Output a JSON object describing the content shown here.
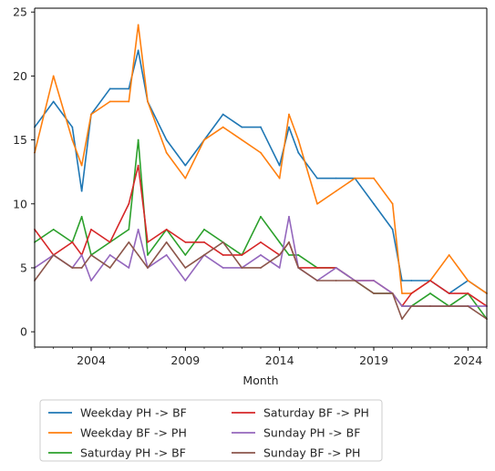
{
  "chart_data": {
    "type": "line",
    "title": "",
    "xlabel": "Month",
    "ylabel": "",
    "xlim": [
      2001.0,
      2025.0
    ],
    "ylim": [
      -1.2,
      25.3
    ],
    "x_ticks": [
      {
        "value": 2004,
        "label": "2004"
      },
      {
        "value": 2009,
        "label": "2009"
      },
      {
        "value": 2014,
        "label": "2014"
      },
      {
        "value": 2019,
        "label": "2019"
      },
      {
        "value": 2024,
        "label": "2024"
      }
    ],
    "y_ticks": [
      {
        "value": 0,
        "label": "0"
      },
      {
        "value": 5,
        "label": "5"
      },
      {
        "value": 10,
        "label": "10"
      },
      {
        "value": 15,
        "label": "15"
      },
      {
        "value": 20,
        "label": "20"
      },
      {
        "value": 25,
        "label": "25"
      }
    ],
    "grid": false,
    "legend": "below-left, two columns",
    "series": [
      {
        "name": "Weekday PH -> BF",
        "color": "#1f77b4",
        "x": [
          2001.0,
          2002.0,
          2003.0,
          2003.5,
          2004.0,
          2005.0,
          2006.0,
          2006.5,
          2007.0,
          2008.0,
          2009.0,
          2010.0,
          2011.0,
          2012.0,
          2013.0,
          2014.0,
          2014.5,
          2015.0,
          2016.0,
          2017.0,
          2018.0,
          2019.0,
          2020.0,
          2020.5,
          2021.0,
          2022.0,
          2023.0,
          2024.0,
          2025.0
        ],
        "values": [
          16,
          18,
          16,
          11,
          17,
          19,
          19,
          22,
          18,
          15,
          13,
          15,
          17,
          16,
          16,
          13,
          16,
          14,
          12,
          12,
          12,
          10,
          8,
          4,
          4,
          4,
          3,
          4,
          3
        ]
      },
      {
        "name": "Weekday BF -> PH",
        "color": "#ff7f0e",
        "x": [
          2001.0,
          2002.0,
          2003.0,
          2003.5,
          2004.0,
          2005.0,
          2006.0,
          2006.5,
          2007.0,
          2008.0,
          2009.0,
          2010.0,
          2011.0,
          2012.0,
          2013.0,
          2014.0,
          2014.5,
          2015.0,
          2016.0,
          2017.0,
          2018.0,
          2019.0,
          2020.0,
          2020.5,
          2021.0,
          2022.0,
          2023.0,
          2024.0,
          2025.0
        ],
        "values": [
          14,
          20,
          15,
          13,
          17,
          18,
          18,
          24,
          18,
          14,
          12,
          15,
          16,
          15,
          14,
          12,
          17,
          15,
          10,
          11,
          12,
          12,
          10,
          3,
          3,
          4,
          6,
          4,
          3
        ]
      },
      {
        "name": "Saturday PH -> BF",
        "color": "#2ca02c",
        "x": [
          2001.0,
          2002.0,
          2003.0,
          2003.5,
          2004.0,
          2005.0,
          2006.0,
          2006.5,
          2007.0,
          2008.0,
          2009.0,
          2010.0,
          2011.0,
          2012.0,
          2013.0,
          2014.0,
          2014.5,
          2015.0,
          2016.0,
          2017.0,
          2018.0,
          2019.0,
          2020.0,
          2020.5,
          2021.0,
          2022.0,
          2023.0,
          2024.0,
          2025.0
        ],
        "values": [
          7,
          8,
          7,
          9,
          6,
          7,
          8,
          15,
          6,
          8,
          6,
          8,
          7,
          6,
          9,
          7,
          6,
          6,
          5,
          5,
          4,
          3,
          3,
          2,
          2,
          3,
          2,
          3,
          1
        ]
      },
      {
        "name": "Saturday BF -> PH",
        "color": "#d62728",
        "x": [
          2001.0,
          2002.0,
          2003.0,
          2003.5,
          2004.0,
          2005.0,
          2006.0,
          2006.5,
          2007.0,
          2008.0,
          2009.0,
          2010.0,
          2011.0,
          2012.0,
          2013.0,
          2014.0,
          2014.5,
          2015.0,
          2016.0,
          2017.0,
          2018.0,
          2019.0,
          2020.0,
          2020.5,
          2021.0,
          2022.0,
          2023.0,
          2024.0,
          2025.0
        ],
        "values": [
          8,
          6,
          7,
          6,
          8,
          7,
          10,
          13,
          7,
          8,
          7,
          7,
          6,
          6,
          7,
          6,
          7,
          5,
          5,
          5,
          4,
          4,
          3,
          2,
          3,
          4,
          3,
          3,
          2
        ]
      },
      {
        "name": "Sunday PH -> BF",
        "color": "#9467bd",
        "x": [
          2001.0,
          2002.0,
          2003.0,
          2003.5,
          2004.0,
          2005.0,
          2006.0,
          2006.5,
          2007.0,
          2008.0,
          2009.0,
          2010.0,
          2011.0,
          2012.0,
          2013.0,
          2014.0,
          2014.5,
          2015.0,
          2016.0,
          2017.0,
          2018.0,
          2019.0,
          2020.0,
          2020.5,
          2021.0,
          2022.0,
          2023.0,
          2024.0,
          2025.0
        ],
        "values": [
          5,
          6,
          5,
          6,
          4,
          6,
          5,
          8,
          5,
          6,
          4,
          6,
          5,
          5,
          6,
          5,
          9,
          5,
          4,
          5,
          4,
          4,
          3,
          2,
          2,
          2,
          2,
          2,
          2
        ]
      },
      {
        "name": "Sunday BF -> PH",
        "color": "#8c564b",
        "x": [
          2001.0,
          2002.0,
          2003.0,
          2003.5,
          2004.0,
          2005.0,
          2006.0,
          2006.5,
          2007.0,
          2008.0,
          2009.0,
          2010.0,
          2011.0,
          2012.0,
          2013.0,
          2014.0,
          2014.5,
          2015.0,
          2016.0,
          2017.0,
          2018.0,
          2019.0,
          2020.0,
          2020.5,
          2021.0,
          2022.0,
          2023.0,
          2024.0,
          2025.0
        ],
        "values": [
          4,
          6,
          5,
          5,
          6,
          5,
          7,
          6,
          5,
          7,
          5,
          6,
          7,
          5,
          5,
          6,
          7,
          5,
          4,
          4,
          4,
          3,
          3,
          1,
          2,
          2,
          2,
          2,
          1
        ]
      }
    ]
  }
}
